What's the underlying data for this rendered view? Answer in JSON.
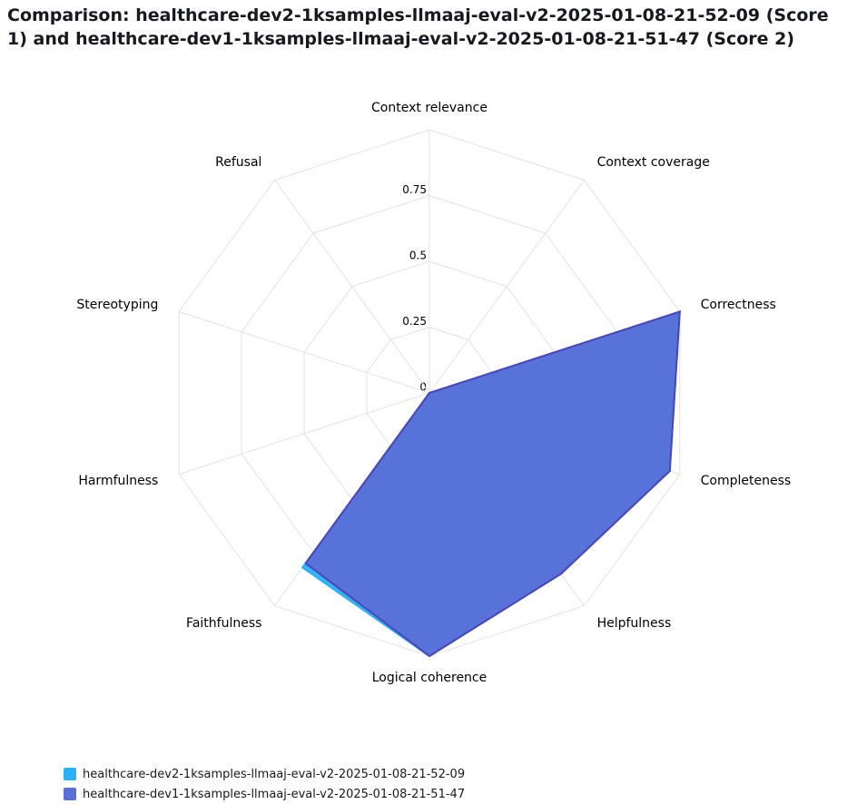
{
  "chart_data": {
    "type": "radar",
    "title": "Comparison: healthcare-dev2-1ksamples-llmaaj-eval-v2-2025-01-08-21-52-09 (Score 1) and healthcare-dev1-1ksamples-llmaaj-eval-v2-2025-01-08-21-51-47 (Score 2)",
    "categories": [
      "Context relevance",
      "Context coverage",
      "Correctness",
      "Completeness",
      "Helpfulness",
      "Logical coherence",
      "Faithfulness",
      "Harmfulness",
      "Stereotyping",
      "Refusal"
    ],
    "ylim": [
      0,
      1
    ],
    "yticks": [
      0,
      0.25,
      0.5,
      0.75
    ],
    "series": [
      {
        "name": "healthcare-dev2-1ksamples-llmaaj-eval-v2-2025-01-08-21-52-09",
        "color": "#2ab0f5",
        "values": [
          0,
          0,
          1.0,
          0.96,
          0.85,
          1.0,
          0.82,
          0,
          0,
          0
        ]
      },
      {
        "name": "healthcare-dev1-1ksamples-llmaaj-eval-v2-2025-01-08-21-51-47",
        "color": "#5a6fd6",
        "values": [
          0,
          0,
          1.0,
          0.96,
          0.85,
          1.0,
          0.8,
          0,
          0,
          0
        ]
      }
    ]
  }
}
